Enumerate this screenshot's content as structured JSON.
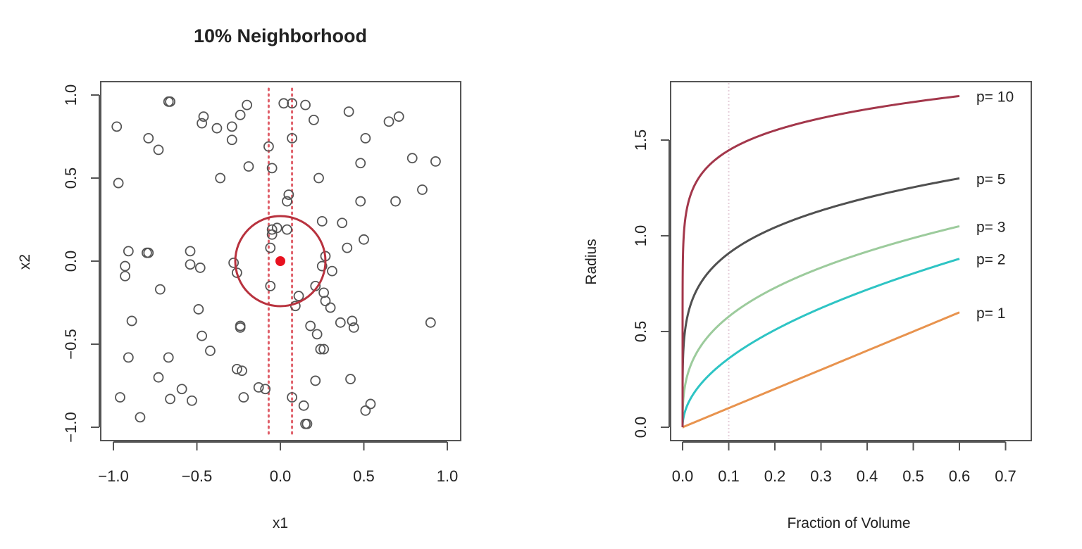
{
  "colors": {
    "points": "#555555",
    "center_point": "#e8111f",
    "neighborhood_circle": "#b8323e",
    "slab_lines": "#e0606a",
    "reference_line": "#e4cdd8",
    "p1": "#e8934e",
    "p2": "#2ec4c4",
    "p3": "#9ccb9c",
    "p5": "#505050",
    "p10": "#a3374b"
  },
  "chart_data": [
    {
      "type": "scatter",
      "title": "10% Neighborhood",
      "xlabel": "x1",
      "ylabel": "x2",
      "xlim": [
        -1.0,
        1.0
      ],
      "ylim": [
        -1.0,
        1.0
      ],
      "xticks": [
        "−1.0",
        "−0.5",
        "0.0",
        "0.5",
        "1.0"
      ],
      "xtick_values": [
        -1.0,
        -0.5,
        0.0,
        0.5,
        1.0
      ],
      "yticks": [
        "−1.0",
        "−0.5",
        "0.0",
        "0.5",
        "1.0"
      ],
      "ytick_values": [
        -1.0,
        -0.5,
        0.0,
        0.5,
        1.0
      ],
      "center_point": [
        0.0,
        0.0
      ],
      "circle_radius": 0.27,
      "slab_lines_x": [
        -0.07,
        0.07
      ],
      "points": [
        [
          -0.98,
          0.81
        ],
        [
          -0.97,
          0.47
        ],
        [
          -0.96,
          -0.82
        ],
        [
          -0.93,
          -0.03
        ],
        [
          -0.93,
          -0.09
        ],
        [
          -0.91,
          0.06
        ],
        [
          -0.91,
          -0.58
        ],
        [
          -0.89,
          -0.36
        ],
        [
          -0.84,
          -0.94
        ],
        [
          -0.8,
          0.05
        ],
        [
          -0.79,
          0.05
        ],
        [
          -0.79,
          0.74
        ],
        [
          -0.73,
          0.67
        ],
        [
          -0.73,
          -0.7
        ],
        [
          -0.72,
          -0.17
        ],
        [
          -0.67,
          0.96
        ],
        [
          -0.66,
          0.96
        ],
        [
          -0.67,
          -0.58
        ],
        [
          -0.66,
          -0.83
        ],
        [
          -0.59,
          -0.77
        ],
        [
          -0.54,
          0.06
        ],
        [
          -0.54,
          -0.02
        ],
        [
          -0.53,
          -0.84
        ],
        [
          -0.49,
          -0.29
        ],
        [
          -0.48,
          -0.04
        ],
        [
          -0.47,
          -0.45
        ],
        [
          -0.47,
          0.83
        ],
        [
          -0.46,
          0.87
        ],
        [
          -0.42,
          -0.54
        ],
        [
          -0.38,
          0.8
        ],
        [
          -0.36,
          0.5
        ],
        [
          -0.29,
          0.73
        ],
        [
          -0.29,
          0.81
        ],
        [
          -0.28,
          -0.01
        ],
        [
          -0.26,
          -0.07
        ],
        [
          -0.26,
          -0.65
        ],
        [
          -0.24,
          -0.39
        ],
        [
          -0.24,
          -0.4
        ],
        [
          -0.24,
          0.88
        ],
        [
          -0.23,
          -0.66
        ],
        [
          -0.22,
          -0.82
        ],
        [
          -0.2,
          0.94
        ],
        [
          -0.19,
          0.57
        ],
        [
          -0.13,
          -0.76
        ],
        [
          -0.09,
          -0.77
        ],
        [
          -0.07,
          0.69
        ],
        [
          -0.06,
          0.08
        ],
        [
          -0.06,
          -0.15
        ],
        [
          -0.05,
          0.56
        ],
        [
          -0.05,
          0.19
        ],
        [
          -0.05,
          0.16
        ],
        [
          -0.02,
          0.2
        ],
        [
          0.02,
          0.95
        ],
        [
          0.04,
          0.36
        ],
        [
          0.04,
          0.19
        ],
        [
          0.05,
          0.4
        ],
        [
          0.07,
          0.95
        ],
        [
          0.07,
          0.74
        ],
        [
          0.07,
          -0.82
        ],
        [
          0.09,
          -0.27
        ],
        [
          0.11,
          -0.21
        ],
        [
          0.14,
          -0.87
        ],
        [
          0.15,
          0.94
        ],
        [
          0.15,
          -0.98
        ],
        [
          0.16,
          -0.98
        ],
        [
          0.18,
          -0.39
        ],
        [
          0.2,
          0.85
        ],
        [
          0.21,
          -0.15
        ],
        [
          0.21,
          -0.72
        ],
        [
          0.22,
          -0.44
        ],
        [
          0.23,
          0.5
        ],
        [
          0.24,
          -0.53
        ],
        [
          0.25,
          0.24
        ],
        [
          0.25,
          -0.03
        ],
        [
          0.26,
          -0.19
        ],
        [
          0.26,
          -0.53
        ],
        [
          0.27,
          -0.24
        ],
        [
          0.27,
          0.03
        ],
        [
          0.3,
          -0.28
        ],
        [
          0.31,
          -0.06
        ],
        [
          0.36,
          -0.37
        ],
        [
          0.37,
          0.23
        ],
        [
          0.4,
          0.08
        ],
        [
          0.41,
          0.9
        ],
        [
          0.42,
          -0.71
        ],
        [
          0.43,
          -0.36
        ],
        [
          0.44,
          -0.4
        ],
        [
          0.48,
          0.59
        ],
        [
          0.48,
          0.36
        ],
        [
          0.5,
          0.13
        ],
        [
          0.51,
          0.74
        ],
        [
          0.51,
          -0.9
        ],
        [
          0.54,
          -0.86
        ],
        [
          0.65,
          0.84
        ],
        [
          0.69,
          0.36
        ],
        [
          0.71,
          0.87
        ],
        [
          0.79,
          0.62
        ],
        [
          0.85,
          0.43
        ],
        [
          0.9,
          -0.37
        ],
        [
          0.93,
          0.6
        ]
      ]
    },
    {
      "type": "line",
      "title": "",
      "xlabel": "Fraction of Volume",
      "ylabel": "Radius",
      "xlim": [
        0.0,
        0.7
      ],
      "ylim": [
        0.0,
        1.75
      ],
      "xticks": [
        "0.0",
        "0.1",
        "0.2",
        "0.3",
        "0.4",
        "0.5",
        "0.6",
        "0.7"
      ],
      "xtick_values": [
        0.0,
        0.1,
        0.2,
        0.3,
        0.4,
        0.5,
        0.6,
        0.7
      ],
      "yticks": [
        "0.0",
        "0.5",
        "1.0",
        "1.5"
      ],
      "ytick_values": [
        0.0,
        0.5,
        1.0,
        1.5
      ],
      "reference_line_x": 0.1,
      "x_range": [
        0.0,
        0.6
      ],
      "series": [
        {
          "name": "p= 10",
          "p": 10,
          "color_key": "p10",
          "endpoint": [
            0.6,
            1.73
          ]
        },
        {
          "name": "p= 5",
          "p": 5,
          "color_key": "p5",
          "endpoint": [
            0.6,
            1.3
          ]
        },
        {
          "name": "p= 3",
          "p": 3,
          "color_key": "p3",
          "endpoint": [
            0.6,
            1.05
          ]
        },
        {
          "name": "p= 2",
          "p": 2,
          "color_key": "p2",
          "endpoint": [
            0.6,
            0.88
          ]
        },
        {
          "name": "p= 1",
          "p": 1,
          "color_key": "p1",
          "endpoint": [
            0.6,
            0.6
          ]
        }
      ]
    }
  ]
}
